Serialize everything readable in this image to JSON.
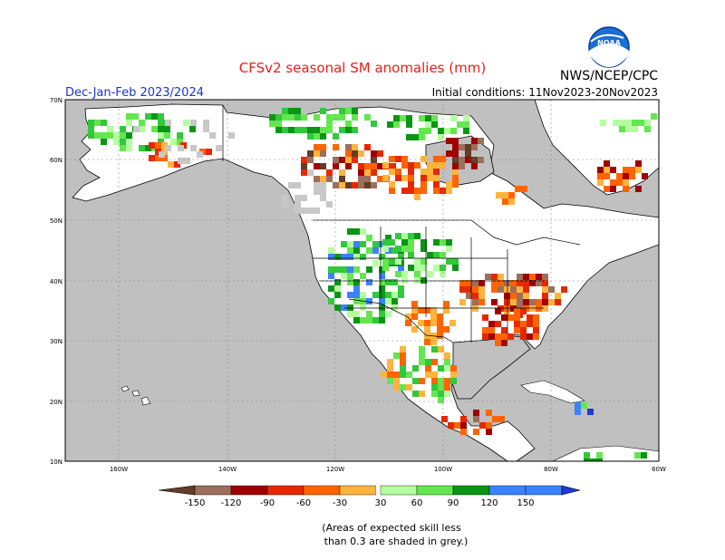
{
  "header": {
    "title": "CFSv2 seasonal SM anomalies (mm)",
    "season": "Dec-Jan-Feb 2023/2024",
    "source": "NWS/NCEP/CPC",
    "initial_conditions": "Initial conditions: 11Nov2023-20Nov2023",
    "logo_text": "NOAA"
  },
  "map": {
    "lat_ticks": [
      "70N",
      "60N",
      "50N",
      "40N",
      "30N",
      "20N",
      "10N"
    ],
    "lon_ticks": [
      "160W",
      "140W",
      "120W",
      "100W",
      "80W",
      "60W"
    ],
    "ocean_color": "#c0c0c0",
    "land_color": "#ffffff"
  },
  "legend": {
    "labels": [
      "-150",
      "-120",
      "-90",
      "-60",
      "-30",
      "30",
      "60",
      "90",
      "120",
      "150"
    ],
    "colors": [
      "#643c28",
      "#9c6e5c",
      "#a00000",
      "#e62800",
      "#ff6400",
      "#ffb43c",
      "#ffffff",
      "#b4ffa0",
      "#64e650",
      "#32c83c",
      "#0a9614",
      "#3c82ff",
      "#1e3cd2"
    ]
  },
  "note": {
    "line1": "(Areas of expected skill less",
    "line2": "than 0.3 are shaded in grey.)"
  }
}
